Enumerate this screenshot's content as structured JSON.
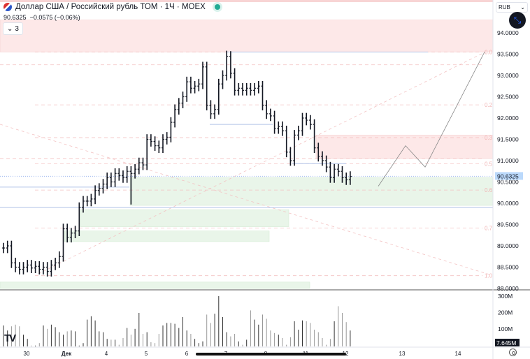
{
  "header": {
    "title": "Доллар США / Российский рубль ТОМ · 1Ч · MOEX",
    "last": "90.6325",
    "change": "−0.0575 (−0.06%)",
    "indicators_collapsed": "3",
    "market_status_color": "#22ab94"
  },
  "price_axis": {
    "currency": "RUB",
    "current_price_label": "90.6325",
    "last_volume_label": "7.645M"
  },
  "chart_data": {
    "type": "ohlc-bar",
    "ylim": [
      88.0,
      94.0
    ],
    "y_ticks": [
      "94.0000",
      "93.5000",
      "93.0000",
      "92.5000",
      "92.0000",
      "91.5000",
      "91.0000",
      "90.5000",
      "90.0000",
      "89.5000",
      "89.0000",
      "88.5000",
      "88.0000"
    ],
    "x_ticks": [
      "30",
      "Дек",
      "4",
      "5",
      "6",
      "7",
      "8",
      "11",
      "12",
      "13",
      "14"
    ],
    "closes": [
      88.95,
      89.0,
      88.6,
      88.5,
      88.45,
      88.5,
      88.55,
      88.48,
      88.52,
      88.45,
      88.5,
      88.4,
      88.55,
      88.6,
      88.75,
      89.4,
      89.2,
      89.3,
      89.35,
      89.9,
      90.05,
      90.05,
      90.1,
      90.3,
      90.35,
      90.45,
      90.6,
      90.5,
      90.7,
      90.65,
      90.6,
      90.75,
      90.7,
      90.8,
      90.95,
      90.9,
      91.5,
      91.45,
      91.35,
      91.3,
      91.5,
      91.55,
      91.9,
      92.2,
      92.35,
      92.5,
      92.85,
      92.7,
      92.75,
      92.8,
      93.2,
      92.3,
      92.1,
      92.2,
      92.8,
      93.0,
      93.45,
      93.05,
      92.65,
      92.7,
      92.65,
      92.7,
      92.65,
      92.7,
      92.75,
      92.3,
      92.1,
      92.05,
      91.75,
      91.8,
      91.7,
      91.2,
      91.0,
      91.6,
      91.7,
      92.0,
      91.95,
      91.85,
      91.3,
      91.1,
      91.0,
      90.85,
      90.6,
      90.8,
      90.75,
      90.6,
      90.55,
      90.63
    ],
    "volume": {
      "ticks": [
        "300M",
        "200M",
        "100M"
      ],
      "values": [
        125,
        95,
        120,
        130,
        120,
        70,
        45,
        5,
        5,
        20,
        125,
        105,
        130,
        115,
        85,
        70,
        90,
        95,
        90,
        5,
        20,
        160,
        180,
        155,
        90,
        85,
        45,
        40,
        40,
        10,
        50,
        110,
        70,
        105,
        200,
        75,
        85,
        25,
        20,
        75,
        125,
        140,
        140,
        135,
        110,
        175,
        95,
        75,
        45,
        20,
        30,
        190,
        140,
        195,
        300,
        175,
        85,
        60,
        75,
        30,
        10,
        40,
        215,
        160,
        130,
        190,
        165,
        95,
        80,
        70,
        50,
        10,
        55,
        150,
        100,
        155,
        150,
        140,
        100,
        85,
        50,
        10,
        45,
        150,
        240,
        200,
        145,
        95
      ]
    },
    "fib_levels": [
      "0.0",
      "0.2",
      "0.3",
      "0.5",
      "0.6",
      "0.7",
      "1.0"
    ],
    "zones": {
      "supply": [
        [
          93.55,
          94.3
        ],
        [
          91.05,
          91.6
        ]
      ],
      "demand": [
        [
          89.95,
          90.6
        ],
        [
          89.45,
          89.85
        ],
        [
          89.1,
          89.35
        ],
        [
          88.0,
          88.15
        ]
      ]
    },
    "projection": [
      [
        90.4
      ],
      [
        91.35
      ],
      [
        90.85
      ],
      [
        93.5
      ]
    ]
  },
  "colors": {
    "supply": "#fde8e8",
    "demand": "#e9f5e9",
    "level_line": "#b2c4e8",
    "fib": "#f3c2c2",
    "bar": "#131722",
    "current_price_bg": "#bbd9fb"
  }
}
